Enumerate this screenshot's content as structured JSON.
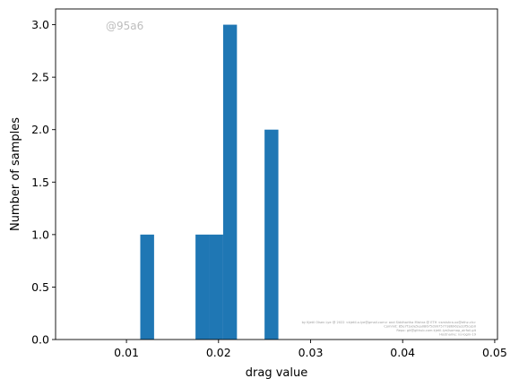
{
  "chart_data": {
    "type": "bar",
    "subtype": "histogram",
    "title": "",
    "xlabel": "drag value",
    "ylabel": "Number of samples",
    "xlim": [
      0.0023,
      0.0503
    ],
    "ylim": [
      0,
      3.15
    ],
    "xticks": [
      0.01,
      0.02,
      0.03,
      0.04,
      0.05
    ],
    "xtick_labels": [
      "0.01",
      "0.02",
      "0.03",
      "0.04",
      "0.05"
    ],
    "yticks": [
      0.0,
      0.5,
      1.0,
      1.5,
      2.0,
      2.5,
      3.0
    ],
    "ytick_labels": [
      "0.0",
      "0.5",
      "1.0",
      "1.5",
      "2.0",
      "2.5",
      "3.0"
    ],
    "bins": [
      {
        "x0": 0.0115,
        "x1": 0.013,
        "count": 1
      },
      {
        "x0": 0.0175,
        "x1": 0.019,
        "count": 1
      },
      {
        "x0": 0.019,
        "x1": 0.0205,
        "count": 1
      },
      {
        "x0": 0.0205,
        "x1": 0.022,
        "count": 3
      },
      {
        "x0": 0.025,
        "x1": 0.0265,
        "count": 2
      }
    ],
    "bar_color": "#1f77b4",
    "grid": false,
    "legend": "none"
  },
  "watermark": "@95a6",
  "credit_lines": [
    "by Kjetil Olsen Lye @ 2022 <kjetil.o.lye@gmail.com> and Siddhartha Mishra @ ETH <smishra.xx@ethz.ch>",
    "Commit: 85e7f1a0e5ea08675d997577386962a33f5ceb0",
    "Repo: git@github.com:kjetil-lye/isomap_airfoil.git",
    "Hostname: ns-login-19"
  ]
}
